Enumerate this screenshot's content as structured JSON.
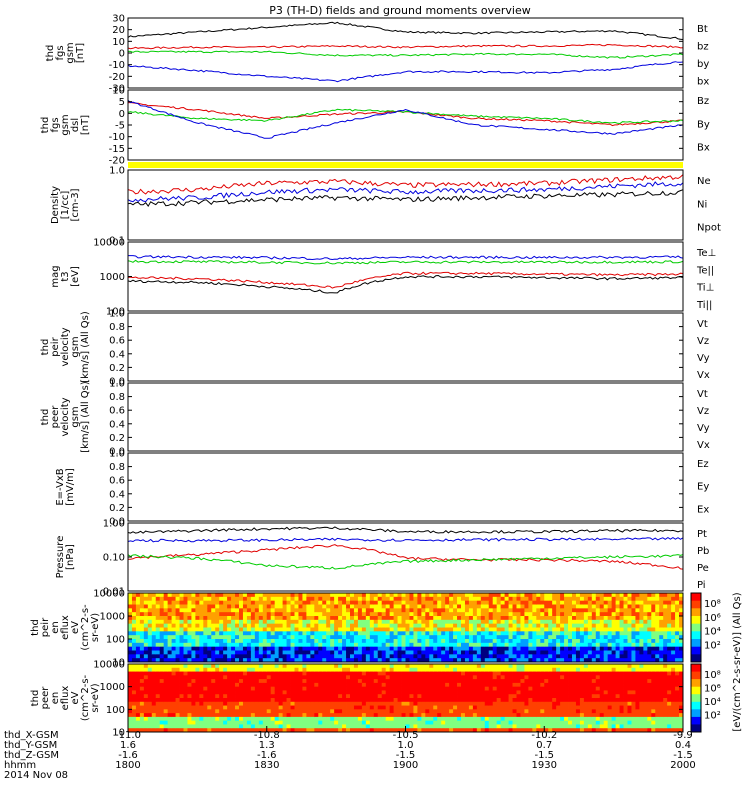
{
  "title": "P3 (TH-D) fields and ground moments overview",
  "date": "2014 Nov 08",
  "colors": {
    "black": "#000000",
    "red": "#e00000",
    "green": "#00cc00",
    "blue": "#0000dd",
    "yellow": "#ffff00"
  },
  "chart_data": [
    {
      "type": "line",
      "id": "fgs_gsm",
      "ylabel": [
        "thd",
        "fgs",
        "gsm",
        "[nT]"
      ],
      "ylim": [
        -30,
        30
      ],
      "yticks": [
        "30",
        "20",
        "10",
        "0",
        "-10",
        "-20",
        "-30"
      ],
      "legend": [
        {
          "name": "Bt",
          "color": "black"
        },
        {
          "name": "bz",
          "color": "red"
        },
        {
          "name": "by",
          "color": "green"
        },
        {
          "name": "bx",
          "color": "blue"
        }
      ],
      "x": [
        18.0,
        18.25,
        18.5,
        18.75,
        19.0,
        19.25,
        19.5,
        19.75,
        20.0
      ],
      "series": [
        {
          "name": "Bt",
          "values": [
            14,
            18,
            22,
            26,
            18,
            17,
            18,
            19,
            12
          ]
        },
        {
          "name": "bz",
          "values": [
            4,
            5,
            5,
            6,
            5,
            6,
            6,
            7,
            5
          ]
        },
        {
          "name": "by",
          "values": [
            1,
            1,
            1,
            -2,
            -2,
            -1,
            -1,
            -4,
            -1
          ]
        },
        {
          "name": "bx",
          "values": [
            -11,
            -15,
            -20,
            -24,
            -16,
            -16,
            -17,
            -14,
            -7
          ]
        }
      ]
    },
    {
      "type": "line",
      "id": "fgs_gsm_dsl",
      "ylabel": [
        "thd",
        "fgs",
        "gsm",
        "dsl",
        "[nT]"
      ],
      "ylim": [
        -22,
        10
      ],
      "yticks": [
        "10",
        "5",
        "0",
        "-5",
        "-10",
        "-15",
        "-20"
      ],
      "legend": [
        {
          "name": "Bz",
          "color": "red"
        },
        {
          "name": "By",
          "color": "green"
        },
        {
          "name": "Bx",
          "color": "blue"
        }
      ],
      "x": [
        18.0,
        18.25,
        18.5,
        18.75,
        19.0,
        19.25,
        19.5,
        19.75,
        20.0
      ],
      "series": [
        {
          "name": "Bz",
          "values": [
            4,
            1,
            -3,
            -1,
            0,
            -3,
            -4,
            -6,
            -4
          ]
        },
        {
          "name": "By",
          "values": [
            0,
            -3,
            -4,
            1,
            0,
            -2,
            -3,
            -5,
            -4
          ]
        },
        {
          "name": "Bx",
          "values": [
            5,
            -5,
            -12,
            -5,
            1,
            -6,
            -8,
            -10,
            -6
          ]
        }
      ]
    },
    {
      "type": "flag",
      "id": "flag_bar"
    },
    {
      "type": "line",
      "id": "density",
      "ylabel": [
        "Density",
        "[1/cc]",
        "[cm-3]"
      ],
      "ylim": [
        0.1,
        1.2
      ],
      "log": true,
      "yticks": [
        "1.0",
        "0.1"
      ],
      "legend": [
        {
          "name": "Ne",
          "color": "red"
        },
        {
          "name": "Ni",
          "color": "black"
        },
        {
          "name": "Npot",
          "color": "blue"
        }
      ],
      "x": [
        18.0,
        18.25,
        18.5,
        18.75,
        19.0,
        19.25,
        19.5,
        19.75,
        20.0
      ],
      "series": [
        {
          "name": "Ne",
          "values": [
            0.55,
            0.6,
            0.75,
            0.8,
            0.7,
            0.72,
            0.75,
            0.85,
            0.95
          ]
        },
        {
          "name": "Ni",
          "values": [
            0.35,
            0.38,
            0.42,
            0.45,
            0.42,
            0.45,
            0.48,
            0.5,
            0.55
          ]
        },
        {
          "name": "Npot",
          "values": [
            0.42,
            0.45,
            0.55,
            0.6,
            0.55,
            0.58,
            0.6,
            0.68,
            0.75
          ]
        }
      ]
    },
    {
      "type": "line",
      "id": "temperature",
      "ylabel": [
        "mag",
        "t3",
        "[eV]"
      ],
      "ylim": [
        100,
        20000
      ],
      "log": true,
      "yticks": [
        "10000",
        "1000",
        "100"
      ],
      "legend": [
        {
          "name": "Te⊥",
          "color": "red"
        },
        {
          "name": "Te||",
          "color": "black"
        },
        {
          "name": "Ti⊥",
          "color": "blue"
        },
        {
          "name": "Ti||",
          "color": "green"
        }
      ],
      "x": [
        18.0,
        18.25,
        18.5,
        18.75,
        19.0,
        19.25,
        19.5,
        19.75,
        20.0
      ],
      "series": [
        {
          "name": "Te⊥",
          "values": [
            1300,
            1200,
            900,
            600,
            1800,
            1800,
            1700,
            1600,
            1700
          ]
        },
        {
          "name": "Te||",
          "values": [
            1000,
            900,
            650,
            400,
            1400,
            1400,
            1300,
            1200,
            1300
          ]
        },
        {
          "name": "Ti⊥",
          "values": [
            6500,
            6300,
            6000,
            5500,
            6200,
            6200,
            6100,
            6200,
            6300
          ]
        },
        {
          "name": "Ti||",
          "values": [
            4500,
            4400,
            4200,
            4000,
            4300,
            4300,
            4300,
            4300,
            4400
          ]
        }
      ]
    },
    {
      "type": "line",
      "id": "peir_vel",
      "ylabel": [
        "thd",
        "peir",
        "velocity",
        "gsm",
        "[km/s] (All Qs)"
      ],
      "ylim": [
        0,
        1
      ],
      "yticks": [
        "1.0",
        "0.8",
        "0.6",
        "0.4",
        "0.2",
        "0.0"
      ],
      "legend": [
        {
          "name": "Vt",
          "color": "black"
        },
        {
          "name": "Vz",
          "color": "red"
        },
        {
          "name": "Vy",
          "color": "green"
        },
        {
          "name": "Vx",
          "color": "blue"
        }
      ],
      "series": []
    },
    {
      "type": "line",
      "id": "peer_vel",
      "ylabel": [
        "thd",
        "peer",
        "velocity",
        "gsm",
        "[km/s] (All Qs)"
      ],
      "ylim": [
        0,
        1
      ],
      "yticks": [
        "1.0",
        "0.8",
        "0.6",
        "0.4",
        "0.2",
        "0.0"
      ],
      "legend": [
        {
          "name": "Vt",
          "color": "black"
        },
        {
          "name": "Vz",
          "color": "red"
        },
        {
          "name": "Vy",
          "color": "green"
        },
        {
          "name": "Vx",
          "color": "blue"
        }
      ],
      "series": []
    },
    {
      "type": "line",
      "id": "efield",
      "ylabel": [
        "E=-VxB",
        "[mV/m]"
      ],
      "ylim": [
        0,
        1
      ],
      "yticks": [
        "1.0",
        "0.8",
        "0.6",
        "0.4",
        "0.2",
        "0.0"
      ],
      "legend": [
        {
          "name": "Ez",
          "color": "red"
        },
        {
          "name": "Ey",
          "color": "green"
        },
        {
          "name": "Ex",
          "color": "blue"
        }
      ],
      "series": []
    },
    {
      "type": "line",
      "id": "pressure",
      "ylabel": [
        "Pressure",
        "[nPa]"
      ],
      "ylim": [
        0.01,
        1.2
      ],
      "log": true,
      "yticks": [
        "1.00",
        "0.10",
        "0.01"
      ],
      "legend": [
        {
          "name": "Pt",
          "color": "black"
        },
        {
          "name": "Pb",
          "color": "red"
        },
        {
          "name": "Pe",
          "color": "green"
        },
        {
          "name": "Pi",
          "color": "blue"
        }
      ],
      "x": [
        18.0,
        18.25,
        18.5,
        18.75,
        19.0,
        19.25,
        19.5,
        19.75,
        20.0
      ],
      "series": [
        {
          "name": "Pt",
          "values": [
            0.6,
            0.7,
            0.8,
            0.85,
            0.65,
            0.65,
            0.65,
            0.7,
            0.7
          ]
        },
        {
          "name": "Pb",
          "values": [
            0.1,
            0.13,
            0.18,
            0.25,
            0.1,
            0.09,
            0.09,
            0.08,
            0.05
          ]
        },
        {
          "name": "Pe",
          "values": [
            0.12,
            0.1,
            0.06,
            0.05,
            0.08,
            0.09,
            0.1,
            0.11,
            0.12
          ]
        },
        {
          "name": "Pi",
          "values": [
            0.35,
            0.35,
            0.36,
            0.38,
            0.36,
            0.37,
            0.38,
            0.38,
            0.4
          ]
        }
      ]
    },
    {
      "type": "heatmap",
      "id": "peir_en",
      "ylabel": [
        "thd",
        "peir",
        "en",
        "eflux",
        "eV",
        "(cm^2-s-",
        "sr-eV)"
      ],
      "ylim": [
        5,
        20000
      ],
      "log": true,
      "yticks": [
        "10000",
        "1000",
        "100",
        "10"
      ]
    },
    {
      "type": "heatmap",
      "id": "peer_en",
      "ylabel": [
        "thd",
        "peer",
        "en",
        "eflux",
        "eV",
        "(cm^2-s-",
        "sr-eV)"
      ],
      "ylim": [
        5,
        20000
      ],
      "log": true,
      "yticks": [
        "10000",
        "1000",
        "100",
        "10"
      ]
    }
  ],
  "colorbar": {
    "label": "[eV/(cm^2-s-sr-eV)] (All Qs)",
    "ticks_top": [
      "10⁸",
      "10⁶",
      "10⁴",
      "10²"
    ],
    "ticks_bottom": [
      "10⁸",
      "10⁶",
      "10⁴",
      "10²"
    ]
  },
  "xaxis": {
    "rows": [
      {
        "label": "thd_X-GSM",
        "values": [
          "-11.0",
          "-10.8",
          "-10.5",
          "-10.2",
          "-9.9"
        ]
      },
      {
        "label": "thd_Y-GSM",
        "values": [
          "1.6",
          "1.3",
          "1.0",
          "0.7",
          "0.4"
        ]
      },
      {
        "label": "thd_Z-GSM",
        "values": [
          "-1.6",
          "-1.6",
          "-1.5",
          "-1.5",
          "-1.5"
        ]
      },
      {
        "label": "hhmm",
        "values": [
          "1800",
          "1830",
          "1900",
          "1930",
          "2000"
        ]
      }
    ]
  }
}
